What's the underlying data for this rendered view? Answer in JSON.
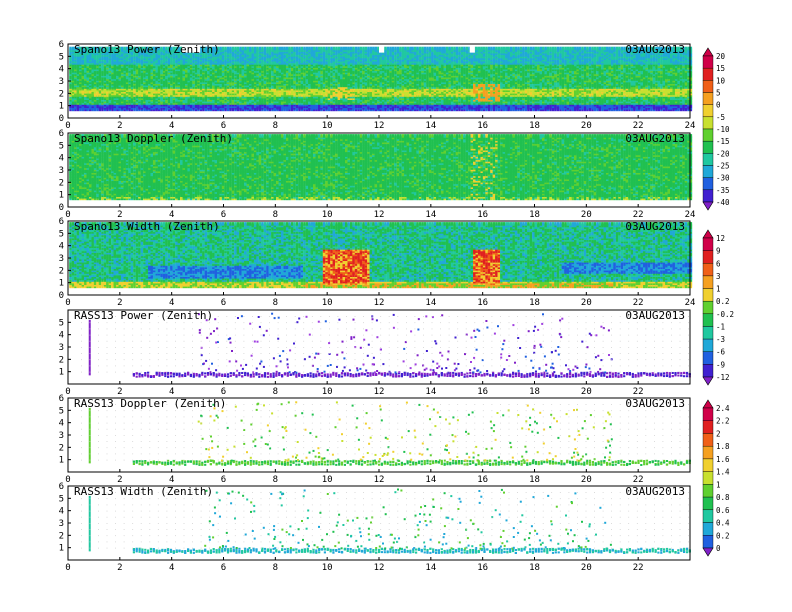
{
  "chart_data": [
    {
      "type": "heatmap",
      "title": "Spano13 Power (Zenith)",
      "date": "03AUG2013",
      "xlim": [
        0,
        24
      ],
      "ylim": [
        0,
        6
      ],
      "xticks": [
        "0",
        "2",
        "4",
        "6",
        "8",
        "10",
        "12",
        "14",
        "16",
        "18",
        "20",
        "22",
        "24"
      ],
      "yticks": [
        "0",
        "1",
        "2",
        "3",
        "4",
        "5",
        "6"
      ],
      "style": "power",
      "colorbar": [
        "20",
        "15",
        "10",
        "5",
        "0",
        "-5",
        "-10",
        "-15",
        "-20",
        "-25",
        "-30",
        "-35",
        "-40"
      ]
    },
    {
      "type": "heatmap",
      "title": "Spano13 Doppler (Zenith)",
      "date": "03AUG2013",
      "xlim": [
        0,
        24
      ],
      "ylim": [
        0,
        6
      ],
      "xticks": [
        "0",
        "2",
        "4",
        "6",
        "8",
        "10",
        "12",
        "14",
        "16",
        "18",
        "20",
        "22",
        "24"
      ],
      "yticks": [
        "0",
        "1",
        "2",
        "3",
        "4",
        "5",
        "6"
      ],
      "style": "doppler"
    },
    {
      "type": "heatmap",
      "title": "Spano13 Width (Zenith)",
      "date": "03AUG2013",
      "xlim": [
        0,
        24
      ],
      "ylim": [
        0,
        6
      ],
      "xticks": [
        "0",
        "2",
        "4",
        "6",
        "8",
        "10",
        "12",
        "14",
        "16",
        "18",
        "20",
        "22",
        "24"
      ],
      "yticks": [
        "0",
        "1",
        "2",
        "3",
        "4",
        "5",
        "6"
      ],
      "style": "width",
      "colorbar": [
        "12",
        "9",
        "6",
        "3",
        "1",
        "0.2",
        "-0.2",
        "-1",
        "-3",
        "-6",
        "-9",
        "-12"
      ]
    },
    {
      "type": "scatter",
      "title": "RASS13 Power (Zenith)",
      "date": "03AUG2013",
      "xlim": [
        0,
        24
      ],
      "ylim": [
        0,
        6
      ],
      "xticks": [
        "0",
        "2",
        "4",
        "6",
        "8",
        "10",
        "12",
        "14",
        "16",
        "18",
        "20",
        "22"
      ],
      "yticks": [
        "1",
        "2",
        "3",
        "4",
        "5"
      ],
      "style": "rasspower"
    },
    {
      "type": "scatter",
      "title": "RASS13 Doppler (Zenith)",
      "date": "03AUG2013",
      "xlim": [
        0,
        24
      ],
      "ylim": [
        0,
        6
      ],
      "xticks": [
        "0",
        "2",
        "4",
        "6",
        "8",
        "10",
        "12",
        "14",
        "16",
        "18",
        "20",
        "22"
      ],
      "yticks": [
        "1",
        "2",
        "3",
        "4",
        "5",
        "6"
      ],
      "style": "rassdoppler",
      "colorbar": [
        "2.4",
        "2.2",
        "2",
        "1.8",
        "1.6",
        "1.4",
        "1",
        "0.8",
        "0.6",
        "0.4",
        "0.2",
        "0"
      ]
    },
    {
      "type": "scatter",
      "title": "RASS13 Width (Zenith)",
      "date": "03AUG2013",
      "xlim": [
        0,
        24
      ],
      "ylim": [
        0,
        6
      ],
      "xticks": [
        "0",
        "2",
        "4",
        "6",
        "8",
        "10",
        "12",
        "14",
        "16",
        "18",
        "20",
        "22"
      ],
      "yticks": [
        "1",
        "2",
        "3",
        "4",
        "5",
        "6"
      ],
      "style": "rasswidth"
    }
  ]
}
